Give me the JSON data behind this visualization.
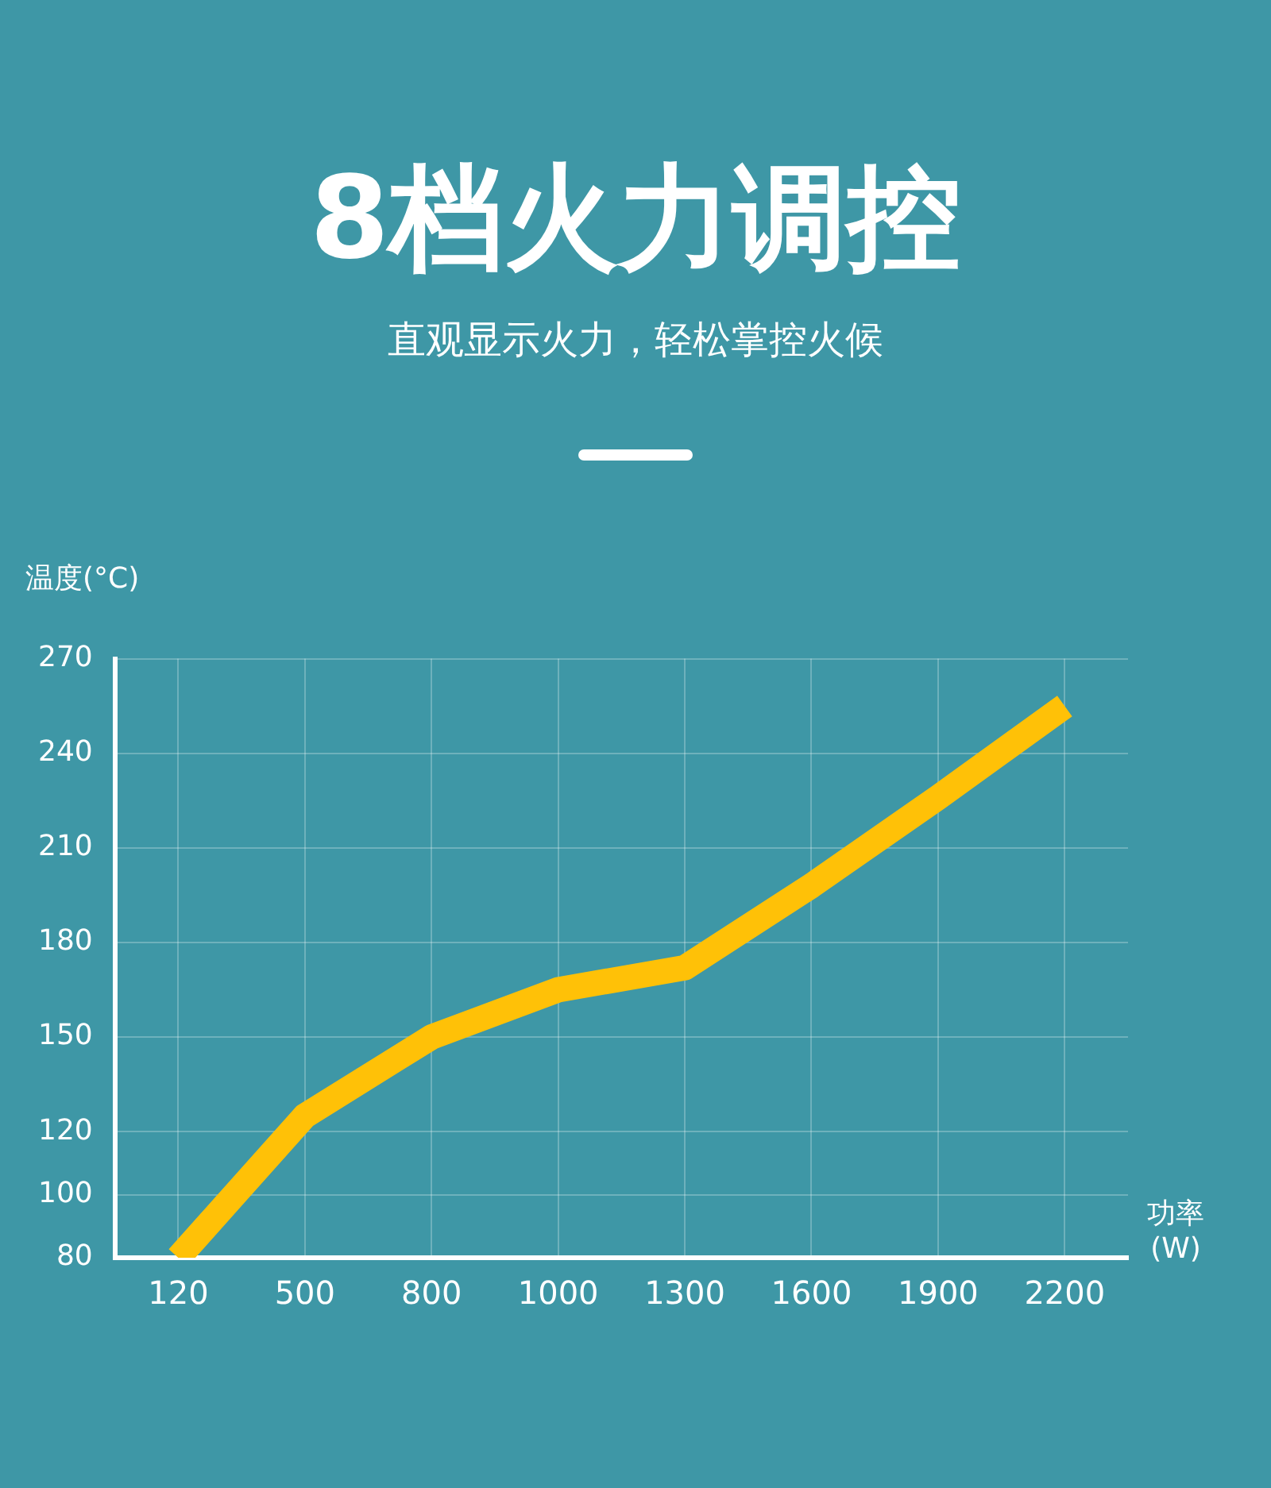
{
  "chart_data": {
    "type": "line",
    "title": "8档火力调控",
    "subtitle": "直观显示火力，轻松掌控火候",
    "xlabel": "功率\n(W)",
    "ylabel": "温度(°C)",
    "categories": [
      "120",
      "500",
      "800",
      "1000",
      "1300",
      "1600",
      "1900",
      "2200"
    ],
    "series": [
      {
        "color": "#ffc107",
        "values": [
          80,
          125,
          150,
          165,
          172,
          198,
          226,
          255
        ]
      }
    ],
    "ylim": [
      80,
      270
    ],
    "yticks": [
      80,
      100,
      120,
      150,
      180,
      210,
      240,
      270
    ],
    "grid": true,
    "legend": false,
    "marker": "none",
    "line_style": "solid"
  }
}
